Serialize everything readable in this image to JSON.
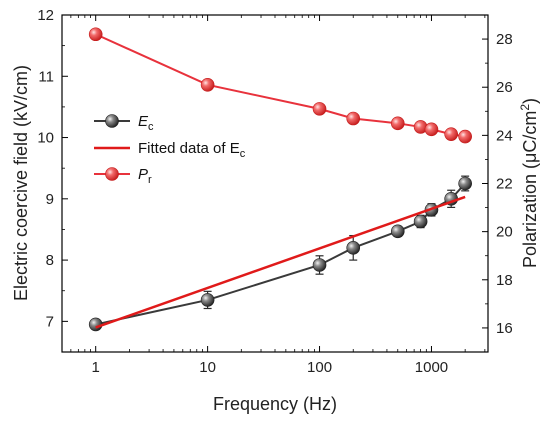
{
  "chart_data": {
    "type": "line",
    "xlabel": "Frequency (Hz)",
    "ylabel_left": "Electric coercive field (kV/cm)",
    "ylabel_right_main": "Polarization (",
    "ylabel_right_unit": "μC/cm",
    "ylabel_right_sup": "2",
    "ylabel_right_close": ")",
    "x_scale": "log",
    "x_ticks": [
      1,
      10,
      100,
      1000
    ],
    "x_tick_labels": [
      "1",
      "10",
      "100",
      "1000"
    ],
    "ylim_left": [
      6.5,
      12
    ],
    "y_ticks_left": [
      7,
      8,
      9,
      10,
      11,
      12
    ],
    "ylim_right": [
      15,
      29
    ],
    "y_ticks_right": [
      16,
      18,
      20,
      22,
      24,
      26,
      28
    ],
    "grid": false,
    "legend_position": "center-left",
    "series": [
      {
        "name": "Ec",
        "legend_main": "E",
        "legend_sub": "c",
        "axis": "left",
        "color": "#3a3a3a",
        "marker": "sphere",
        "x": [
          1,
          10,
          100,
          200,
          500,
          800,
          1000,
          1500,
          2000
        ],
        "y": [
          6.95,
          7.35,
          7.92,
          8.2,
          8.47,
          8.63,
          8.82,
          9.0,
          9.25
        ],
        "err": [
          0.05,
          0.14,
          0.15,
          0.2,
          0.08,
          0.1,
          0.1,
          0.14,
          0.12
        ]
      },
      {
        "name": "Fitted data of Ec",
        "legend_main": "Fitted data of E",
        "legend_sub": "c",
        "axis": "left",
        "color": "#e01a1a",
        "marker": "none",
        "x": [
          1,
          2000
        ],
        "y": [
          6.9,
          9.03
        ]
      },
      {
        "name": "Pr",
        "legend_main": "P",
        "legend_sub": "r",
        "axis": "right",
        "color": "#e8323c",
        "marker": "sphere",
        "x": [
          1,
          10,
          100,
          200,
          500,
          800,
          1000,
          1500,
          2000
        ],
        "y": [
          28.2,
          26.1,
          25.1,
          24.7,
          24.5,
          24.35,
          24.25,
          24.05,
          23.95
        ]
      }
    ]
  }
}
